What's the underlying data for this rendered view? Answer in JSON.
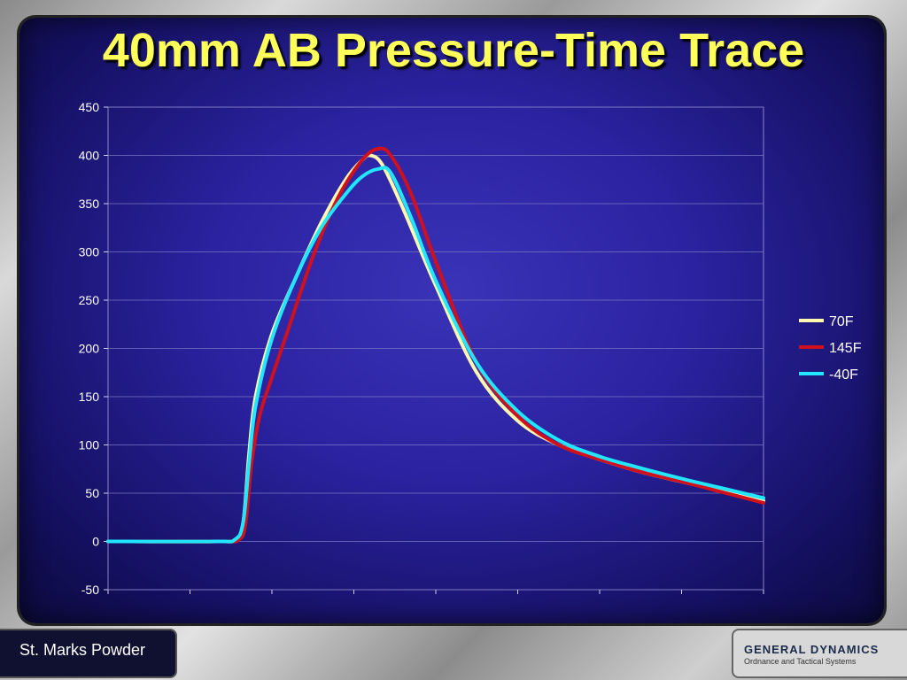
{
  "slide": {
    "title": "40mm AB Pressure-Time Trace",
    "footer_left": "St. Marks Powder",
    "logo_main": "GENERAL DYNAMICS",
    "logo_sub": "Ordnance and Tactical Systems"
  },
  "chart_data": {
    "type": "line",
    "title": "40mm AB Pressure-Time Trace",
    "xlabel": "",
    "ylabel": "",
    "ylim": [
      -50,
      450
    ],
    "yticks": [
      -50,
      0,
      50,
      100,
      150,
      200,
      250,
      300,
      350,
      400,
      450
    ],
    "xlim": [
      0,
      8
    ],
    "grid": "horizontal",
    "legend_position": "right",
    "series": [
      {
        "name": "70F",
        "color": "#fff8b0",
        "x": [
          0,
          1.3,
          1.55,
          1.65,
          1.72,
          1.8,
          2.0,
          2.3,
          2.6,
          2.9,
          3.1,
          3.2,
          3.35,
          3.6,
          4.0,
          4.5,
          5.0,
          5.5,
          6.0,
          6.5,
          7.0,
          7.5,
          8.0
        ],
        "values": [
          0,
          0,
          2,
          20,
          90,
          150,
          215,
          275,
          330,
          375,
          395,
          400,
          390,
          345,
          265,
          175,
          125,
          100,
          85,
          72,
          62,
          52,
          42
        ]
      },
      {
        "name": "145F",
        "color": "#d0101c",
        "x": [
          0,
          1.35,
          1.6,
          1.68,
          1.75,
          1.85,
          2.0,
          2.2,
          2.5,
          2.8,
          3.1,
          3.3,
          3.45,
          3.7,
          4.0,
          4.5,
          5.0,
          5.5,
          6.0,
          6.5,
          7.0,
          7.5,
          8.0
        ],
        "values": [
          0,
          0,
          2,
          20,
          80,
          130,
          170,
          220,
          295,
          355,
          395,
          407,
          400,
          360,
          290,
          185,
          130,
          100,
          85,
          72,
          62,
          51,
          40
        ]
      },
      {
        "name": "-40F",
        "color": "#22e6ff",
        "x": [
          0,
          1.3,
          1.55,
          1.65,
          1.72,
          1.8,
          2.0,
          2.3,
          2.6,
          2.9,
          3.1,
          3.3,
          3.45,
          3.7,
          4.0,
          4.5,
          5.0,
          5.5,
          6.0,
          6.5,
          7.0,
          7.5,
          8.0
        ],
        "values": [
          0,
          0,
          2,
          20,
          80,
          140,
          210,
          275,
          325,
          360,
          378,
          386,
          382,
          335,
          270,
          185,
          135,
          105,
          88,
          76,
          65,
          55,
          45
        ]
      }
    ]
  }
}
